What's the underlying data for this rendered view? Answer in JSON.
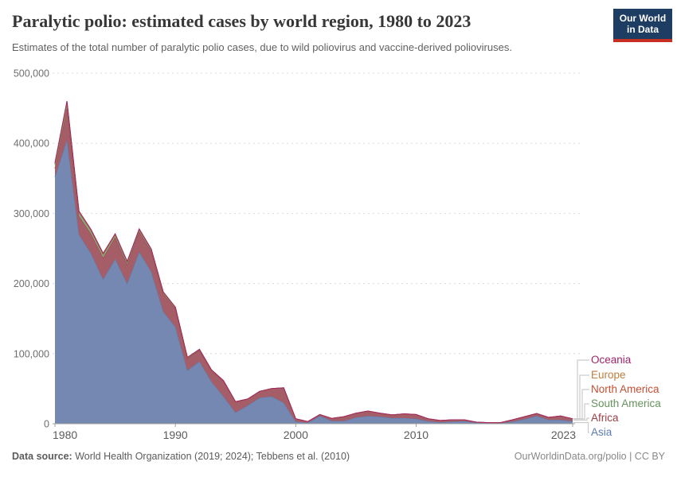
{
  "header": {
    "title": "Paralytic polio: estimated cases by world region, 1980 to 2023",
    "subtitle": "Estimates of the total number of paralytic polio cases, due to wild poliovirus and vaccine-derived polioviruses.",
    "logo": {
      "line1": "Our World",
      "line2": "in Data",
      "bg_color": "#1D3D63",
      "stripe_color": "#C62F22"
    }
  },
  "footer": {
    "source_label": "Data source:",
    "source_text": " World Health Organization (2019; 2024); Tebbens et al. (2010)",
    "link_text": "OurWorldinData.org/polio | CC BY"
  },
  "chart_data": {
    "type": "area",
    "stacked": true,
    "title": "Paralytic polio: estimated cases by world region, 1980 to 2023",
    "xlabel": "",
    "ylabel": "",
    "xlim": [
      1980,
      2023
    ],
    "ylim": [
      0,
      500000
    ],
    "xticks": [
      1980,
      1990,
      2000,
      2010,
      2023
    ],
    "yticks": [
      0,
      100000,
      200000,
      300000,
      400000,
      500000
    ],
    "grid": "dashed horizontal",
    "legend_position": "right",
    "legend_order_top_to_bottom": [
      "Oceania",
      "Europe",
      "North America",
      "South America",
      "Africa",
      "Asia"
    ],
    "x": [
      1980,
      1981,
      1982,
      1983,
      1984,
      1985,
      1986,
      1987,
      1988,
      1989,
      1990,
      1991,
      1992,
      1993,
      1994,
      1995,
      1996,
      1997,
      1998,
      1999,
      2000,
      2001,
      2002,
      2003,
      2004,
      2005,
      2006,
      2007,
      2008,
      2009,
      2010,
      2011,
      2012,
      2013,
      2014,
      2015,
      2016,
      2017,
      2018,
      2019,
      2020,
      2021,
      2022,
      2023
    ],
    "series": [
      {
        "name": "Asia",
        "label_color": "#5b7bb2",
        "fill_color": "#7488b1",
        "values": [
          352000,
          405000,
          270000,
          243000,
          206000,
          235000,
          200000,
          245000,
          217000,
          160000,
          138000,
          76000,
          89000,
          60000,
          39000,
          16000,
          26000,
          37000,
          39000,
          30000,
          3000,
          1500,
          11000,
          4000,
          4000,
          9000,
          11000,
          10000,
          8000,
          8000,
          7000,
          3500,
          2000,
          3000,
          3500,
          1200,
          800,
          800,
          3000,
          6500,
          11000,
          5500,
          5500,
          3500
        ]
      },
      {
        "name": "Africa",
        "label_color": "#9b3d44",
        "fill_color": "#a55e67",
        "values": [
          12000,
          46000,
          26000,
          28000,
          31000,
          31000,
          27000,
          29000,
          29000,
          25000,
          26000,
          17000,
          16000,
          16000,
          22000,
          15000,
          9000,
          9000,
          11000,
          21000,
          4000,
          1500,
          2000,
          3500,
          6000,
          6000,
          7000,
          5000,
          4500,
          6000,
          6000,
          3500,
          2500,
          2500,
          2000,
          1000,
          700,
          700,
          2500,
          3500,
          3500,
          3500,
          5500,
          3500
        ]
      },
      {
        "name": "South America",
        "label_color": "#65945c",
        "fill_color": "#8aac80",
        "values": [
          5000,
          6000,
          5000,
          4000,
          4000,
          3000,
          3000,
          2500,
          2000,
          2000,
          1500,
          1000,
          800,
          500,
          300,
          200,
          150,
          100,
          100,
          100,
          50,
          50,
          50,
          50,
          50,
          50,
          50,
          50,
          50,
          50,
          50,
          50,
          50,
          50,
          50,
          50,
          50,
          50,
          50,
          50,
          50,
          50,
          50,
          50
        ]
      },
      {
        "name": "North America",
        "label_color": "#c44f33",
        "fill_color": "#cb8263",
        "values": [
          1500,
          1500,
          1000,
          1000,
          1000,
          1000,
          800,
          700,
          600,
          500,
          400,
          300,
          200,
          200,
          100,
          100,
          50,
          50,
          50,
          50,
          30,
          30,
          30,
          30,
          30,
          30,
          30,
          30,
          30,
          30,
          30,
          30,
          30,
          30,
          30,
          30,
          30,
          30,
          30,
          30,
          30,
          30,
          30,
          30
        ]
      },
      {
        "name": "Europe",
        "label_color": "#bf7d3e",
        "fill_color": "#d0a872",
        "values": [
          1500,
          1500,
          1000,
          1000,
          1000,
          800,
          700,
          600,
          500,
          400,
          300,
          200,
          200,
          200,
          100,
          100,
          50,
          50,
          50,
          50,
          30,
          30,
          30,
          30,
          30,
          30,
          30,
          30,
          30,
          30,
          30,
          30,
          30,
          30,
          30,
          30,
          30,
          30,
          30,
          30,
          30,
          30,
          30,
          30
        ]
      },
      {
        "name": "Oceania",
        "label_color": "#a0246a",
        "fill_color": "#b56f97",
        "values": [
          100,
          100,
          100,
          100,
          100,
          100,
          100,
          100,
          50,
          50,
          50,
          50,
          50,
          50,
          20,
          20,
          20,
          20,
          20,
          20,
          10,
          10,
          10,
          10,
          10,
          10,
          10,
          10,
          10,
          10,
          10,
          10,
          10,
          10,
          10,
          10,
          10,
          10,
          10,
          10,
          10,
          10,
          10,
          10
        ]
      }
    ]
  }
}
